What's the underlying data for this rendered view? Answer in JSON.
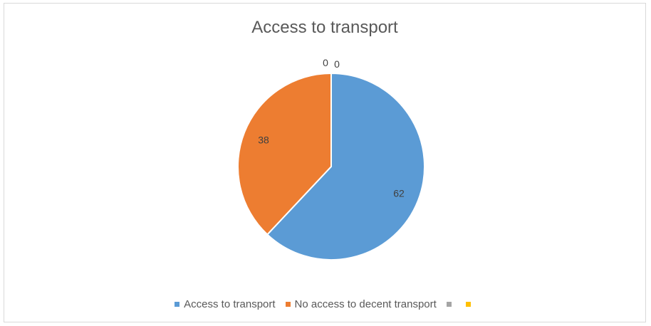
{
  "chart_data": {
    "type": "pie",
    "title": "Access to transport",
    "categories": [
      "Access to transport",
      "No access to decent transport",
      "",
      ""
    ],
    "values": [
      62,
      38,
      0,
      0
    ],
    "colors": [
      "#5b9bd5",
      "#ed7d31",
      "#a5a5a5",
      "#ffc000"
    ],
    "data_labels": [
      "62",
      "38",
      "0",
      "0"
    ],
    "legend_position": "bottom"
  }
}
